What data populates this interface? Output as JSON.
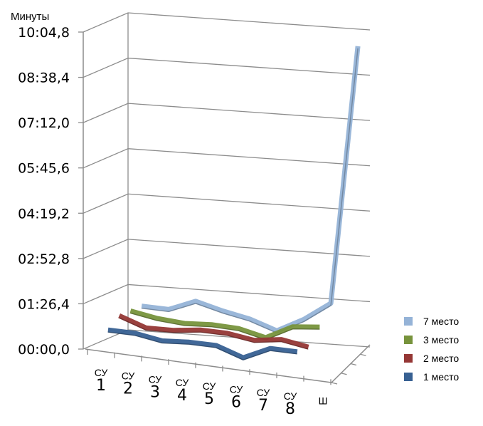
{
  "chart_data": {
    "type": "line",
    "subtype": "3d-line",
    "title": "",
    "ylabel": "Минуты",
    "xlabel": "",
    "ylim_seconds": [
      0,
      604.8
    ],
    "y_ticks": [
      "00:00,0",
      "01:26,4",
      "02:52,8",
      "04:19,2",
      "05:45,6",
      "07:12,0",
      "08:38,4",
      "10:04,8"
    ],
    "categories": [
      {
        "prefix": "СУ",
        "num": "1"
      },
      {
        "prefix": "СУ",
        "num": "2"
      },
      {
        "prefix": "СУ",
        "num": "3"
      },
      {
        "prefix": "СУ",
        "num": "4"
      },
      {
        "prefix": "СУ",
        "num": "5"
      },
      {
        "prefix": "СУ",
        "num": "6"
      },
      {
        "prefix": "СУ",
        "num": "7"
      },
      {
        "prefix": "СУ",
        "num": "8"
      },
      {
        "prefix": "",
        "num": "Ш"
      }
    ],
    "value_unit": "seconds",
    "series": [
      {
        "name": "1 место",
        "color": "#376092",
        "values": [
          35,
          35,
          27,
          31,
          31,
          14,
          38,
          38,
          null
        ]
      },
      {
        "name": "2 место",
        "color": "#953735",
        "values": [
          53,
          36,
          38,
          45,
          45,
          38,
          46,
          38,
          null
        ]
      },
      {
        "name": "3 место",
        "color": "#77933C",
        "values": [
          53,
          45,
          42,
          46,
          45,
          34,
          61,
          67,
          null
        ]
      },
      {
        "name": "7 место",
        "color": "#95B3D7",
        "values": [
          53,
          53,
          75,
          63,
          54,
          38,
          66,
          103,
          600
        ]
      }
    ],
    "legend_position": "right",
    "grid": true
  }
}
